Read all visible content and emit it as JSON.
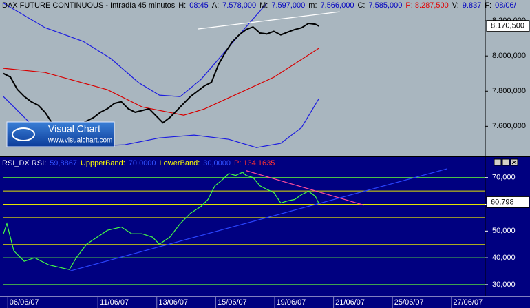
{
  "chart_data": [
    {
      "type": "line",
      "header": [
        {
          "text": "DAX FUTURE CONTINUOUS - Intradía 45 minutos",
          "color": "#000000"
        },
        {
          "text": "H:",
          "color": "#000000"
        },
        {
          "text": "08:45",
          "color": "#0000c0"
        },
        {
          "text": "A:",
          "color": "#000000"
        },
        {
          "text": "7.578,000",
          "color": "#0000c0"
        },
        {
          "text": "M:",
          "color": "#000000"
        },
        {
          "text": "7.597,000",
          "color": "#0000c0"
        },
        {
          "text": "m:",
          "color": "#000000"
        },
        {
          "text": "7.566,000",
          "color": "#0000c0"
        },
        {
          "text": "C:",
          "color": "#000000"
        },
        {
          "text": "7.585,000",
          "color": "#0000c0"
        },
        {
          "text": "P: 8.287,500",
          "color": "#e00000"
        },
        {
          "text": "V:",
          "color": "#000000"
        },
        {
          "text": "9.837",
          "color": "#0000c0"
        },
        {
          "text": "F:",
          "color": "#000000"
        },
        {
          "text": "08/06/",
          "color": "#0000c0"
        }
      ],
      "watermark": {
        "title": "Visual Chart",
        "url": "www.visualchart.com"
      },
      "xlim": [
        0,
        139
      ],
      "ylim": [
        7429,
        8318
      ],
      "yticks": [
        {
          "value": 8200,
          "label": "8.200,000"
        },
        {
          "value": 8000,
          "label": "8.000,000"
        },
        {
          "value": 7800,
          "label": "7.800,000"
        },
        {
          "value": 7600,
          "label": "7.600,000"
        }
      ],
      "tag": {
        "value": 8170.5,
        "label": "8.170,500"
      },
      "series": [
        {
          "color": "#1c1ce0",
          "x": [
            0,
            12,
            23,
            31,
            39,
            45,
            51,
            57,
            63,
            69,
            76
          ],
          "values": [
            8300,
            8161,
            8083,
            7985,
            7848,
            7777,
            7769,
            7867,
            8004,
            8142,
            8300
          ]
        },
        {
          "color": "#1c1ce0",
          "x": [
            0,
            8,
            15,
            25,
            35,
            45,
            55,
            65,
            73,
            80,
            86,
            91
          ],
          "values": [
            7769,
            7612,
            7534,
            7487,
            7495,
            7534,
            7550,
            7526,
            7479,
            7503,
            7593,
            7757
          ]
        },
        {
          "color": "#d80000",
          "x": [
            0,
            12,
            30,
            40,
            52,
            58,
            68,
            78,
            91
          ],
          "values": [
            7930,
            7906,
            7808,
            7710,
            7663,
            7699,
            7789,
            7879,
            8044
          ]
        },
        {
          "color": "#000000",
          "x": [
            0,
            2,
            4,
            6,
            8,
            10,
            12,
            14,
            16,
            18,
            20,
            22,
            24,
            26,
            28,
            30,
            32,
            34,
            36,
            38,
            40,
            42,
            44,
            46,
            48,
            50,
            52,
            54,
            56,
            58,
            60,
            62,
            64,
            66,
            68,
            70,
            72,
            74,
            76,
            78,
            80,
            82,
            84,
            86,
            88,
            90,
            91
          ],
          "values": [
            7900,
            7880,
            7810,
            7770,
            7740,
            7720,
            7680,
            7620,
            7590,
            7580,
            7590,
            7610,
            7630,
            7650,
            7680,
            7700,
            7730,
            7740,
            7700,
            7680,
            7690,
            7700,
            7660,
            7620,
            7650,
            7690,
            7730,
            7770,
            7800,
            7830,
            7850,
            7950,
            8020,
            8080,
            8120,
            8150,
            8165,
            8130,
            8125,
            8140,
            8120,
            8135,
            8150,
            8160,
            8185,
            8180,
            8170
          ]
        }
      ],
      "trendlines": [
        {
          "color": "#ffffff",
          "x": [
            56,
            97
          ],
          "values": [
            8153,
            8251
          ]
        }
      ]
    },
    {
      "type": "line",
      "header": [
        {
          "text": "RSI_DX RSI:",
          "color": "#ffffff"
        },
        {
          "text": "59,8867",
          "color": "#3050ff"
        },
        {
          "text": "UppperBand:",
          "color": "#ffff00"
        },
        {
          "text": "70,0000",
          "color": "#3050ff"
        },
        {
          "text": "LowerBand:",
          "color": "#ffff00"
        },
        {
          "text": "30,0000",
          "color": "#3050ff"
        },
        {
          "text": "P: 134,1635",
          "color": "#ff3030"
        }
      ],
      "xlim": [
        0,
        139
      ],
      "ylim": [
        25.6,
        77.4
      ],
      "yticks": [
        {
          "value": 70,
          "label": "70,000"
        },
        {
          "value": 60,
          "label": "60,000"
        },
        {
          "value": 50,
          "label": "50,000"
        },
        {
          "value": 40,
          "label": "40,000"
        },
        {
          "value": 30,
          "label": "30,000"
        }
      ],
      "xticks": [
        {
          "value": 6,
          "label": "06/06/07"
        },
        {
          "value": 32,
          "label": "11/06/07"
        },
        {
          "value": 49,
          "label": "13/06/07"
        },
        {
          "value": 66,
          "label": "15/06/07"
        },
        {
          "value": 83,
          "label": "19/06/07"
        },
        {
          "value": 100,
          "label": "21/06/07"
        },
        {
          "value": 117,
          "label": "25/06/07"
        },
        {
          "value": 134,
          "label": "27/06/07"
        }
      ],
      "tag": {
        "value": 60.798,
        "label": "60,798"
      },
      "levels": [
        {
          "value": 70,
          "color": "#66ff33"
        },
        {
          "value": 65,
          "color": "#e6e600"
        },
        {
          "value": 60,
          "color": "#e6e600"
        },
        {
          "value": 55,
          "color": "#e6e600"
        },
        {
          "value": 45,
          "color": "#e6e600"
        },
        {
          "value": 40,
          "color": "#66ff33"
        },
        {
          "value": 35,
          "color": "#e6e600"
        },
        {
          "value": 30,
          "color": "#66ff33"
        }
      ],
      "series": [
        {
          "color": "#44ff44",
          "x": [
            0,
            1,
            3,
            6,
            9,
            13,
            17,
            19,
            21,
            24,
            27,
            30,
            34,
            37,
            40,
            43,
            45,
            48,
            51,
            54,
            57,
            59,
            61,
            63,
            65,
            67,
            69,
            70,
            72,
            74,
            76,
            78,
            80,
            82,
            84,
            86,
            88,
            90,
            91
          ],
          "values": [
            49,
            52.8,
            42.6,
            38.7,
            40,
            37.4,
            36.2,
            35.6,
            40,
            45.1,
            47.7,
            50.3,
            51.5,
            49,
            49,
            47.7,
            45.1,
            47.7,
            52.8,
            56.7,
            59.2,
            61.8,
            66.9,
            69,
            71.5,
            70.8,
            72,
            70.8,
            70,
            66.9,
            65.6,
            64.4,
            60.5,
            61.3,
            61.8,
            63.6,
            64.9,
            63,
            60.3
          ]
        }
      ],
      "trendlines": [
        {
          "color": "#2a44ff",
          "x": [
            19,
            128
          ],
          "values": [
            35,
            73.3
          ]
        },
        {
          "color": "#ff4c9c",
          "x": [
            70,
            104
          ],
          "values": [
            72.6,
            59.7
          ]
        }
      ]
    }
  ]
}
